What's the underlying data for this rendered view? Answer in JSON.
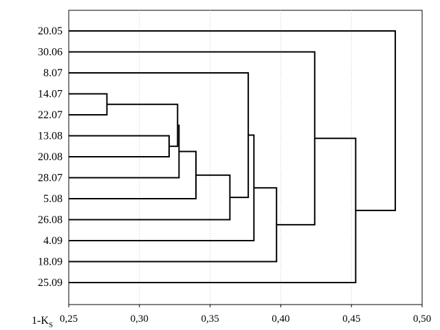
{
  "chart_data": {
    "type": "dendrogram",
    "title": "",
    "xlabel_main": "1-K",
    "xlabel_sub": "S",
    "xlim": [
      0.25,
      0.5
    ],
    "x_ticks": [
      0.25,
      0.3,
      0.35,
      0.4,
      0.45,
      0.5
    ],
    "x_tick_labels": [
      "0,25",
      "0,30",
      "0,35",
      "0,40",
      "0,45",
      "0,50"
    ],
    "grid": "vertical dotted",
    "leaves": [
      "20.05",
      "30.06",
      "8.07",
      "14.07",
      "22.07",
      "13.08",
      "20.08",
      "28.07",
      "5.08",
      "26.08",
      "4.09",
      "18.09",
      "25.09"
    ],
    "merges": [
      {
        "a": "L3",
        "b": "L4",
        "height": 0.277
      },
      {
        "a": "L5",
        "b": "L6",
        "height": 0.321
      },
      {
        "a": "C0",
        "b": "C1",
        "height": 0.327
      },
      {
        "a": "C2",
        "b": "L7",
        "height": 0.328
      },
      {
        "a": "C3",
        "b": "L8",
        "height": 0.34
      },
      {
        "a": "C4",
        "b": "L9",
        "height": 0.364
      },
      {
        "a": "L2",
        "b": "C5",
        "height": 0.377
      },
      {
        "a": "C6",
        "b": "L10",
        "height": 0.381
      },
      {
        "a": "C7",
        "b": "L11",
        "height": 0.397
      },
      {
        "a": "L1",
        "b": "C8",
        "height": 0.424
      },
      {
        "a": "C9",
        "b": "L12",
        "height": 0.453
      },
      {
        "a": "L0",
        "b": "C10",
        "height": 0.481
      }
    ]
  }
}
